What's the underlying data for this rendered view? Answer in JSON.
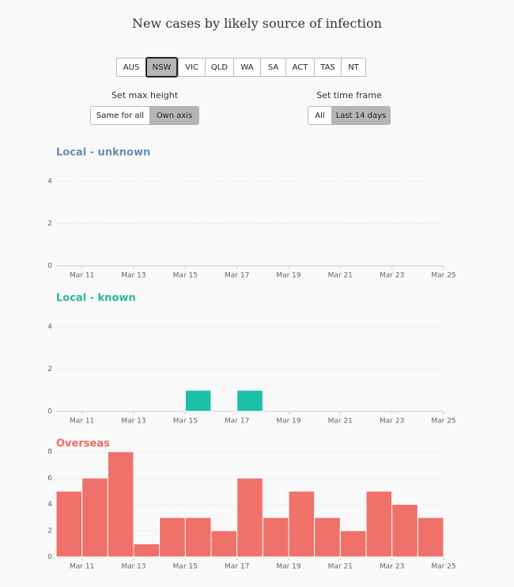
{
  "title": "New cases by likely source of infection",
  "regions": [
    "AUS",
    "NSW",
    "VIC",
    "QLD",
    "WA",
    "SA",
    "ACT",
    "TAS",
    "NT"
  ],
  "controls": {
    "max_height": {
      "label": "Set max height",
      "options": [
        "Same for all",
        "Own axis"
      ]
    },
    "time_frame": {
      "label": "Set time frame",
      "options": [
        "All",
        "Last 14 days"
      ]
    }
  },
  "chart_data": [
    {
      "type": "bar",
      "title": "Local - unknown",
      "title_color": "#6b8cb4",
      "color": "#1dbfa8",
      "x": [
        10,
        11,
        12,
        13,
        14,
        15,
        16,
        17,
        18,
        19,
        20,
        21,
        22,
        23,
        24
      ],
      "values": [
        0,
        0,
        0,
        0,
        0,
        0,
        0,
        0,
        0,
        0,
        0,
        0,
        0,
        0,
        0
      ],
      "xlim": [
        10,
        25
      ],
      "xticks": [
        {
          "value": 11,
          "label": "Mar 11"
        },
        {
          "value": 13,
          "label": "Mar 13"
        },
        {
          "value": 15,
          "label": "Mar 15"
        },
        {
          "value": 17,
          "label": "Mar 17"
        },
        {
          "value": 19,
          "label": "Mar 19"
        },
        {
          "value": 21,
          "label": "Mar 21"
        },
        {
          "value": 23,
          "label": "Mar 23"
        },
        {
          "value": 25,
          "label": "Mar 25"
        }
      ],
      "ylim": [
        0,
        4
      ],
      "yticks": [
        0,
        2,
        4
      ],
      "grid": true
    },
    {
      "type": "bar",
      "title": "Local - known",
      "title_color": "#2bb89a",
      "color": "#1dbfa8",
      "x": [
        10,
        11,
        12,
        13,
        14,
        15,
        16,
        17,
        18,
        19,
        20,
        21,
        22,
        23,
        24
      ],
      "values": [
        0,
        0,
        0,
        0,
        0,
        1,
        0,
        1,
        0,
        0,
        0,
        0,
        0,
        0,
        0
      ],
      "xlim": [
        10,
        25
      ],
      "xticks": [
        {
          "value": 11,
          "label": "Mar 11"
        },
        {
          "value": 13,
          "label": "Mar 13"
        },
        {
          "value": 15,
          "label": "Mar 15"
        },
        {
          "value": 17,
          "label": "Mar 17"
        },
        {
          "value": 19,
          "label": "Mar 19"
        },
        {
          "value": 21,
          "label": "Mar 21"
        },
        {
          "value": 23,
          "label": "Mar 23"
        },
        {
          "value": 25,
          "label": "Mar 25"
        }
      ],
      "ylim": [
        0,
        4
      ],
      "yticks": [
        0,
        2,
        4
      ],
      "grid": true
    },
    {
      "type": "bar",
      "title": "Overseas",
      "title_color": "#ef6a62",
      "color": "#f0716a",
      "x": [
        10,
        11,
        12,
        13,
        14,
        15,
        16,
        17,
        18,
        19,
        20,
        21,
        22,
        23,
        24
      ],
      "values": [
        5,
        6,
        8,
        1,
        3,
        3,
        2,
        6,
        3,
        5,
        3,
        2,
        5,
        4,
        3
      ],
      "xlim": [
        10,
        25
      ],
      "xticks": [
        {
          "value": 11,
          "label": "Mar 11"
        },
        {
          "value": 13,
          "label": "Mar 13"
        },
        {
          "value": 15,
          "label": "Mar 15"
        },
        {
          "value": 17,
          "label": "Mar 17"
        },
        {
          "value": 19,
          "label": "Mar 19"
        },
        {
          "value": 21,
          "label": "Mar 21"
        },
        {
          "value": 23,
          "label": "Mar 23"
        },
        {
          "value": 25,
          "label": "Mar 25"
        }
      ],
      "ylim": [
        0,
        8
      ],
      "yticks": [
        0,
        2,
        4,
        6,
        8
      ],
      "grid": true
    }
  ]
}
